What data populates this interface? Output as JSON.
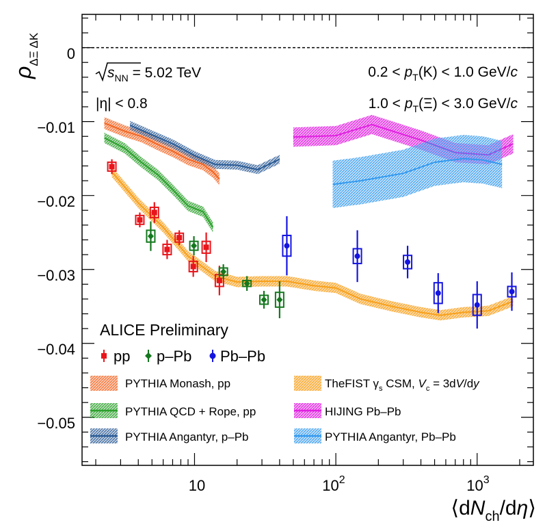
{
  "chart_data": {
    "type": "scatter",
    "title": "",
    "xlabel": "⟨dN_ch/dη⟩",
    "xlabel_parts": {
      "open": "⟨d",
      "N": "N",
      "ch": "ch",
      "slash": "/d",
      "eta": "η",
      "close": "⟩"
    },
    "ylabel_parts": {
      "rho": "ρ",
      "sub": "ΔΞ ΔK"
    },
    "xscale": "log",
    "xlim": [
      1.6,
      2500
    ],
    "ylim": [
      -0.0565,
      0.0045
    ],
    "x_tick_labels": [
      {
        "value": 10,
        "label": "10"
      },
      {
        "value": 100,
        "base": "10",
        "exp": "2"
      },
      {
        "value": 1000,
        "base": "10",
        "exp": "3"
      }
    ],
    "y_ticks": [
      {
        "value": 0,
        "label": "0"
      },
      {
        "value": -0.01,
        "label": "−0.01"
      },
      {
        "value": -0.02,
        "label": "−0.02"
      },
      {
        "value": -0.03,
        "label": "−0.03"
      },
      {
        "value": -0.04,
        "label": "−0.04"
      },
      {
        "value": -0.05,
        "label": "−0.05"
      }
    ],
    "reference_line": {
      "y": 0,
      "style": "dashed"
    },
    "annotations": {
      "energy_prefix": "s",
      "energy_sub": "NN",
      "energy_value": " = 5.02 TeV",
      "eta_cut": "|η| < 0.8",
      "pt_k": {
        "lo": "0.2 < ",
        "p": "p",
        "T": "T",
        "particle": "(K) < 1.0 GeV/",
        "c": "c"
      },
      "pt_xi": {
        "lo": "1.0 < ",
        "p": "p",
        "T": "T",
        "particle": "(Ξ) < 3.0 GeV/",
        "c": "c"
      },
      "collaboration": "ALICE Preliminary"
    },
    "series": [
      {
        "name": "pp",
        "color": "#e8151b",
        "marker": "square",
        "points": [
          {
            "x": 2.6,
            "y": -0.0161,
            "stat": 0.001,
            "syst": 0.0006
          },
          {
            "x": 4.1,
            "y": -0.0233,
            "stat": 0.001,
            "syst": 0.0006
          },
          {
            "x": 5.2,
            "y": -0.0223,
            "stat": 0.0014,
            "syst": 0.0007
          },
          {
            "x": 6.4,
            "y": -0.0273,
            "stat": 0.0013,
            "syst": 0.0007
          },
          {
            "x": 7.8,
            "y": -0.0257,
            "stat": 0.001,
            "syst": 0.0006
          },
          {
            "x": 9.8,
            "y": -0.0296,
            "stat": 0.0014,
            "syst": 0.0007
          },
          {
            "x": 12.1,
            "y": -0.027,
            "stat": 0.002,
            "syst": 0.0008
          },
          {
            "x": 15.0,
            "y": -0.0315,
            "stat": 0.002,
            "syst": 0.0008
          }
        ]
      },
      {
        "name": "p–Pb",
        "color": "#14781e",
        "marker": "diamond",
        "points": [
          {
            "x": 4.9,
            "y": -0.0255,
            "stat": 0.002,
            "syst": 0.0008
          },
          {
            "x": 9.9,
            "y": -0.0268,
            "stat": 0.0013,
            "syst": 0.0006
          },
          {
            "x": 16.0,
            "y": -0.0303,
            "stat": 0.001,
            "syst": 0.0005
          },
          {
            "x": 23.5,
            "y": -0.0319,
            "stat": 0.001,
            "syst": 0.0004
          },
          {
            "x": 31.0,
            "y": -0.0341,
            "stat": 0.0012,
            "syst": 0.0006
          },
          {
            "x": 40.0,
            "y": -0.0341,
            "stat": 0.0025,
            "syst": 0.001
          }
        ]
      },
      {
        "name": "Pb–Pb",
        "color": "#1414e0",
        "marker": "circle",
        "points": [
          {
            "x": 45.0,
            "y": -0.0268,
            "stat": 0.004,
            "syst": 0.0014
          },
          {
            "x": 142.0,
            "y": -0.0282,
            "stat": 0.0035,
            "syst": 0.001
          },
          {
            "x": 322.0,
            "y": -0.029,
            "stat": 0.0022,
            "syst": 0.0009
          },
          {
            "x": 530.0,
            "y": -0.0332,
            "stat": 0.0027,
            "syst": 0.0014
          },
          {
            "x": 1000.0,
            "y": -0.0348,
            "stat": 0.0032,
            "syst": 0.0014
          },
          {
            "x": 1760.0,
            "y": -0.033,
            "stat": 0.0026,
            "syst": 0.0007
          }
        ]
      }
    ],
    "bands": [
      {
        "name": "PYTHIA Monash, pp",
        "color": "#f26522",
        "x": [
          2.3,
          3.2,
          4.2,
          5.5,
          7.0,
          9.0,
          11.5,
          13.5,
          15.0
        ],
        "y": [
          -0.0102,
          -0.0113,
          -0.012,
          -0.0131,
          -0.014,
          -0.0151,
          -0.0158,
          -0.0168,
          -0.0178
        ],
        "width": 0.0008
      },
      {
        "name": "PYTHIA QCD + Rope, pp",
        "color": "#2ca02c",
        "x": [
          2.3,
          3.2,
          4.2,
          5.5,
          7.0,
          9.0,
          11.5,
          13.5
        ],
        "y": [
          -0.0122,
          -0.0136,
          -0.0155,
          -0.0172,
          -0.0192,
          -0.0214,
          -0.0222,
          -0.0243
        ],
        "width": 0.0007
      },
      {
        "name": "PYTHIA Angantyr, p–Pb",
        "color": "#2a5b95",
        "x": [
          3.5,
          5.0,
          7.0,
          10.0,
          14.0,
          20.0,
          28.0,
          40.0
        ],
        "y": [
          -0.0105,
          -0.0118,
          -0.013,
          -0.0146,
          -0.0158,
          -0.0159,
          -0.0165,
          -0.0151
        ],
        "width": 0.0006
      },
      {
        "name": "TheFIST γ_s CSM, V_c = 3dV/dy",
        "color": "#f7a01c",
        "x": [
          2.6,
          4.0,
          6.0,
          9.0,
          14.0,
          20.0,
          30.0,
          45.0,
          70.0,
          100.0,
          150.0,
          250.0,
          400.0,
          550.0,
          800.0,
          1200.0,
          1800.0
        ],
        "y": [
          -0.0168,
          -0.021,
          -0.0243,
          -0.0282,
          -0.0309,
          -0.0317,
          -0.0316,
          -0.0316,
          -0.0322,
          -0.0325,
          -0.034,
          -0.035,
          -0.0358,
          -0.0362,
          -0.0358,
          -0.0356,
          -0.0343
        ],
        "width": 0.0007
      },
      {
        "name": "HIJING Pb–Pb",
        "color": "#e020e0",
        "x": [
          50.0,
          100.0,
          180.0,
          400.0,
          700.0,
          1200.0,
          1800.0
        ],
        "y": [
          -0.0121,
          -0.0119,
          -0.0104,
          -0.0125,
          -0.0142,
          -0.0145,
          -0.013
        ],
        "width": 0.0013
      },
      {
        "name": "PYTHIA Angantyr, Pb–Pb",
        "color": "#3399ee",
        "x": [
          95.0,
          150.0,
          300.0,
          500.0,
          800.0,
          1100.0,
          1500.0
        ],
        "y": [
          -0.0185,
          -0.018,
          -0.017,
          -0.0155,
          -0.015,
          -0.0152,
          -0.0158
        ],
        "width": 0.0032
      }
    ],
    "legend": {
      "points": [
        {
          "label": "pp",
          "color": "#e8151b",
          "marker": "square"
        },
        {
          "label": "p–Pb",
          "color": "#14781e",
          "marker": "diamond"
        },
        {
          "label": "Pb–Pb",
          "color": "#1414e0",
          "marker": "circle"
        }
      ],
      "bands": [
        {
          "label": "PYTHIA Monash, pp",
          "color": "#f26522",
          "style": "band"
        },
        {
          "label": "PYTHIA QCD + Rope, pp",
          "color": "#2ca02c",
          "style": "line-band"
        },
        {
          "label": "PYTHIA Angantyr, p–Pb",
          "color": "#2a5b95",
          "style": "line-band"
        },
        {
          "label": "TheFIST γs CSM, Vc = 3dV/dy",
          "color": "#f7a01c",
          "style": "band",
          "rich": {
            "a": "TheFIST ",
            "gamma": "γ",
            "s": "s",
            "b": " CSM, ",
            "V": "V",
            "c": "c",
            "eq": " = 3d",
            "V2": "V",
            "slash": "/d",
            "y": "y"
          }
        },
        {
          "label": "HIJING Pb–Pb",
          "color": "#e020e0",
          "style": "line-band"
        },
        {
          "label": "PYTHIA Angantyr, Pb–Pb",
          "color": "#3399ee",
          "style": "line-band"
        }
      ]
    }
  }
}
